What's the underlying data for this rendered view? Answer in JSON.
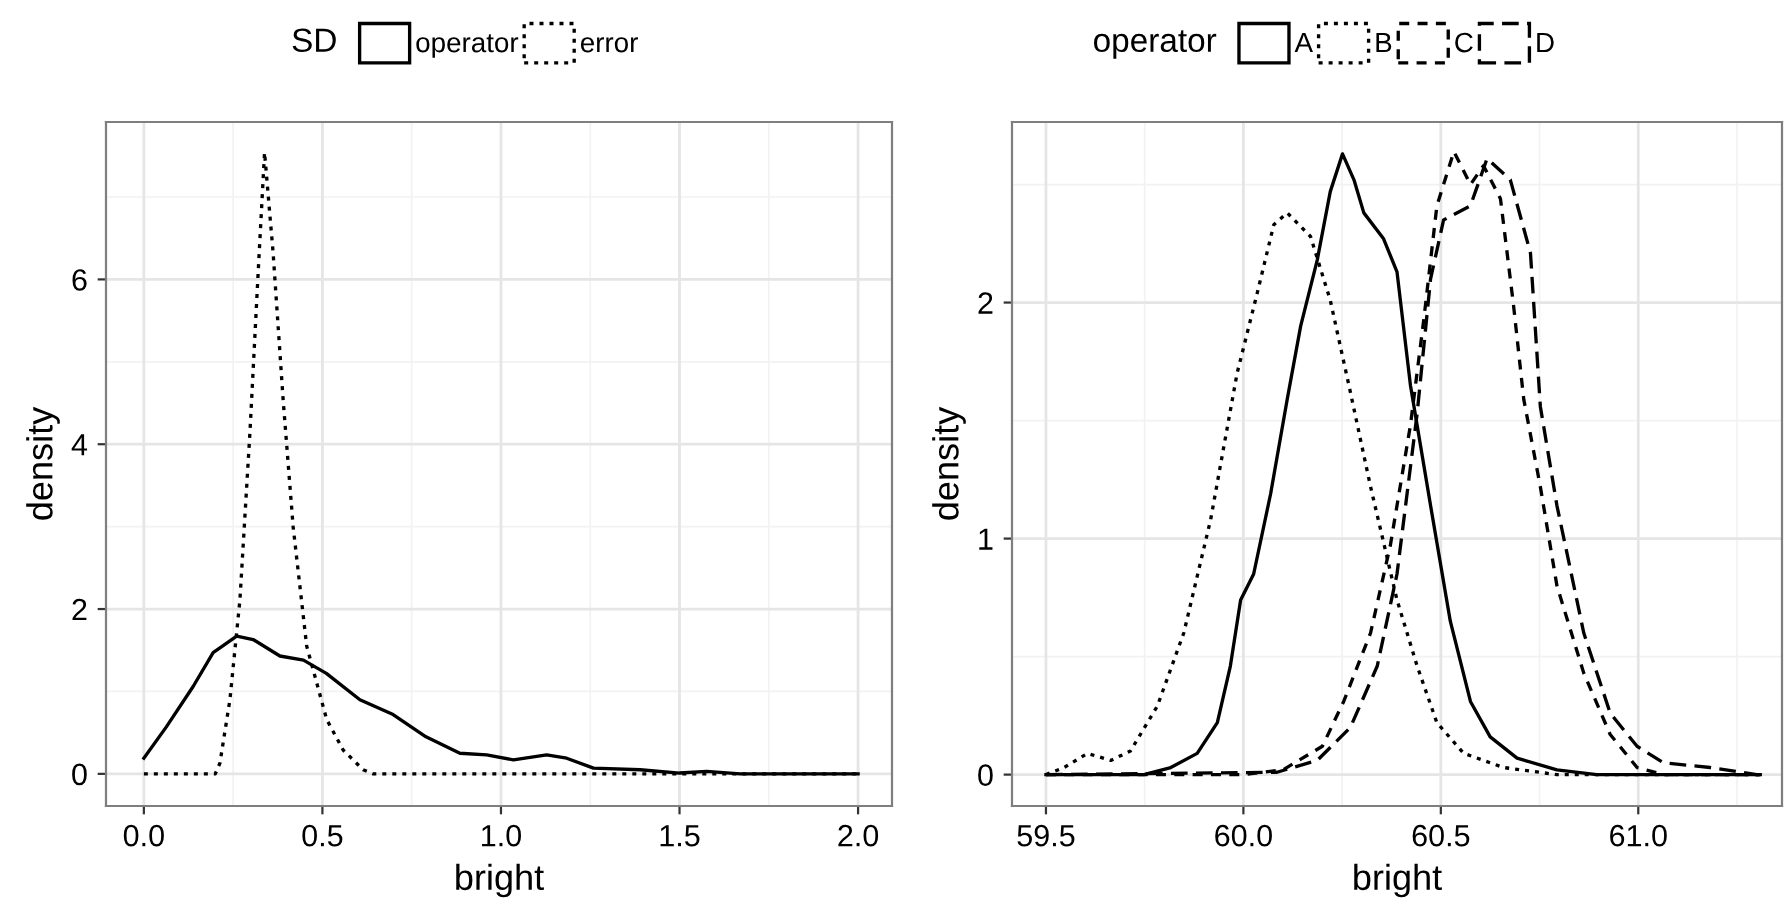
{
  "chart_data": [
    {
      "type": "line",
      "xlabel": "bright",
      "ylabel": "density",
      "legend_title": "SD",
      "legend": "top",
      "grid": true,
      "xlim": [
        -0.106,
        2.095
      ],
      "ylim": [
        -0.39,
        7.91
      ],
      "xticks": [
        {
          "value": 0,
          "label": "0.0"
        },
        {
          "value": 0.5,
          "label": "0.5"
        },
        {
          "value": 1,
          "label": "1.0"
        },
        {
          "value": 1.5,
          "label": "1.5"
        },
        {
          "value": 2,
          "label": "2.0"
        }
      ],
      "yticks": [
        0,
        2,
        4,
        6
      ],
      "series": [
        {
          "name": "operator",
          "color": "#000000",
          "line_style": "solid",
          "x": [
            0,
            0.063,
            0.138,
            0.194,
            0.26,
            0.306,
            0.381,
            0.447,
            0.511,
            0.605,
            0.698,
            0.79,
            0.885,
            0.96,
            1.035,
            1.128,
            1.184,
            1.259,
            1.39,
            1.5,
            1.576,
            1.67,
            2.0
          ],
          "values": [
            0.19,
            0.57,
            1.06,
            1.47,
            1.67,
            1.63,
            1.43,
            1.38,
            1.22,
            0.9,
            0.72,
            0.45,
            0.25,
            0.23,
            0.17,
            0.23,
            0.19,
            0.07,
            0.05,
            0.01,
            0.03,
            0,
            0
          ]
        },
        {
          "name": "error",
          "color": "#000000",
          "line_style": "dotted",
          "x": [
            0,
            0.2,
            0.213,
            0.241,
            0.269,
            0.297,
            0.321,
            0.338,
            0.362,
            0.39,
            0.418,
            0.456,
            0.512,
            0.558,
            0.614,
            0.642,
            2.0
          ],
          "values": [
            0,
            0,
            0.13,
            0.9,
            2.11,
            4.14,
            6.16,
            7.54,
            6.32,
            4.54,
            3.0,
            1.55,
            0.66,
            0.29,
            0.05,
            0,
            0
          ]
        }
      ]
    },
    {
      "type": "line",
      "xlabel": "bright",
      "ylabel": "density",
      "legend_title": "operator",
      "legend": "top",
      "grid": true,
      "xlim": [
        59.414,
        61.364
      ],
      "ylim": [
        -0.133,
        2.765
      ],
      "xticks": [
        {
          "value": 59.5,
          "label": "59.5"
        },
        {
          "value": 60,
          "label": "60.0"
        },
        {
          "value": 60.5,
          "label": "60.5"
        },
        {
          "value": 61,
          "label": "61.0"
        }
      ],
      "yticks": [
        0,
        1,
        2
      ],
      "series": [
        {
          "name": "A",
          "color": "#000000",
          "line_style": "solid",
          "x": [
            59.5,
            59.748,
            59.816,
            59.883,
            59.934,
            59.967,
            59.993,
            60.026,
            60.069,
            60.111,
            60.145,
            60.187,
            60.22,
            60.251,
            60.28,
            60.305,
            60.355,
            60.389,
            60.423,
            60.474,
            60.524,
            60.575,
            60.625,
            60.693,
            60.794,
            60.895,
            61.309
          ],
          "values": [
            0,
            0,
            0.03,
            0.09,
            0.22,
            0.46,
            0.74,
            0.85,
            1.19,
            1.59,
            1.9,
            2.18,
            2.47,
            2.63,
            2.52,
            2.38,
            2.27,
            2.13,
            1.65,
            1.14,
            0.65,
            0.31,
            0.16,
            0.07,
            0.02,
            0,
            0
          ]
        },
        {
          "name": "B",
          "color": "#000000",
          "line_style": "dotted",
          "x": [
            59.5,
            59.546,
            59.605,
            59.664,
            59.714,
            59.782,
            59.849,
            59.917,
            59.984,
            60.035,
            60.077,
            60.111,
            60.17,
            60.22,
            60.271,
            60.322,
            60.389,
            60.44,
            60.49,
            60.558,
            60.659,
            60.794,
            61.309
          ],
          "values": [
            0,
            0.03,
            0.09,
            0.06,
            0.1,
            0.29,
            0.6,
            1.08,
            1.7,
            2.04,
            2.33,
            2.38,
            2.28,
            2.01,
            1.62,
            1.22,
            0.74,
            0.46,
            0.22,
            0.09,
            0.03,
            0,
            0
          ]
        },
        {
          "name": "C",
          "color": "#000000",
          "line_style": "dashed",
          "x": [
            59.5,
            60.0,
            60.1,
            60.2,
            60.254,
            60.322,
            60.372,
            60.423,
            60.457,
            60.49,
            60.533,
            60.575,
            60.608,
            60.651,
            60.684,
            60.71,
            60.752,
            60.794,
            60.862,
            60.929,
            60.997,
            61.064,
            61.309
          ],
          "values": [
            0,
            0,
            0.02,
            0.12,
            0.31,
            0.6,
            0.97,
            1.48,
            1.93,
            2.41,
            2.64,
            2.5,
            2.58,
            2.44,
            1.99,
            1.59,
            1.22,
            0.8,
            0.43,
            0.17,
            0.03,
            0,
            0
          ]
        },
        {
          "name": "D",
          "color": "#000000",
          "line_style": "longdash",
          "x": [
            59.5,
            60.085,
            60.187,
            60.271,
            60.339,
            60.389,
            60.44,
            60.474,
            60.507,
            60.575,
            60.617,
            60.676,
            60.727,
            60.752,
            60.794,
            60.862,
            60.929,
            60.997,
            61.064,
            61.182,
            61.3,
            61.309
          ],
          "values": [
            0,
            0.01,
            0.06,
            0.2,
            0.46,
            0.85,
            1.53,
            2.1,
            2.35,
            2.41,
            2.61,
            2.52,
            2.21,
            1.56,
            1.14,
            0.6,
            0.26,
            0.12,
            0.05,
            0.03,
            0,
            0
          ]
        }
      ]
    }
  ]
}
